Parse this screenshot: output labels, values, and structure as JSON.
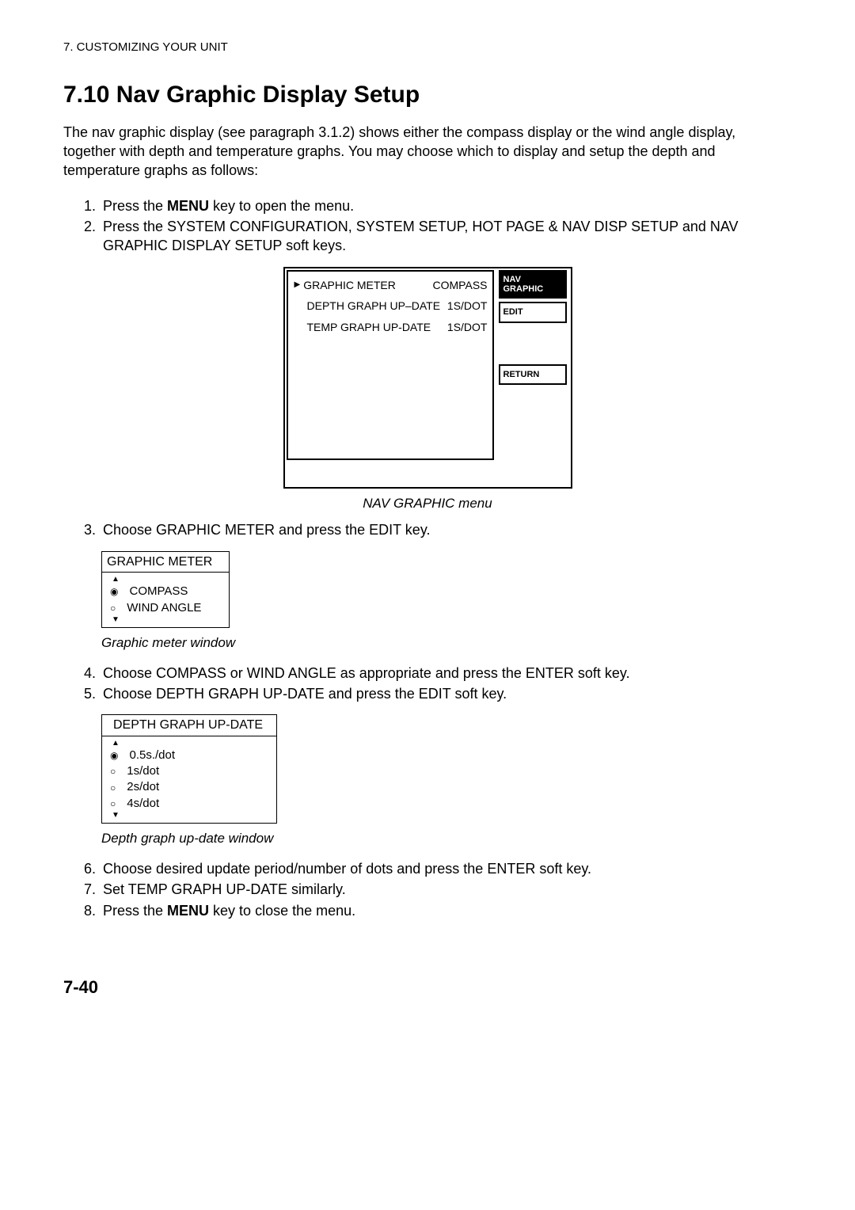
{
  "header": "7. CUSTOMIZING YOUR UNIT",
  "sectionTitle": "7.10  Nav Graphic Display Setup",
  "intro": "The nav graphic display (see paragraph 3.1.2) shows either the compass display or the wind angle display, together with depth and temperature graphs. You may choose which to display and setup the depth and temperature graphs as follows:",
  "steps1": {
    "s1_pre": "Press the ",
    "s1_bold": "MENU",
    "s1_post": " key to open the menu.",
    "s2": "Press the SYSTEM CONFIGURATION, SYSTEM SETUP, HOT PAGE & NAV DISP SETUP and NAV GRAPHIC DISPLAY SETUP soft keys."
  },
  "navGraphic": {
    "rows": [
      {
        "label": "GRAPHIC METER",
        "value": "COMPASS",
        "pointer": true,
        "indent": false
      },
      {
        "label": "DEPTH GRAPH UP–DATE",
        "value": "1S/DOT",
        "pointer": false,
        "indent": true
      },
      {
        "label": "TEMP GRAPH UP-DATE",
        "value": "1S/DOT",
        "pointer": false,
        "indent": true
      }
    ],
    "keyNavLine1": "NAV",
    "keyNavLine2": "GRAPHIC",
    "keyEdit": "EDIT",
    "keyReturn": "RETURN",
    "caption": "NAV GRAPHIC menu"
  },
  "step3": "Choose GRAPHIC METER and press the EDIT key.",
  "graphicMeter": {
    "title": "GRAPHIC METER",
    "optSelected": "COMPASS",
    "optOther": "WIND ANGLE",
    "caption": "Graphic meter window"
  },
  "steps45": {
    "s4": "Choose COMPASS or WIND ANGLE as appropriate and press the ENTER soft key.",
    "s5": "Choose DEPTH GRAPH UP-DATE and press the EDIT soft key."
  },
  "depthUpdate": {
    "title": "DEPTH GRAPH UP-DATE",
    "opts": [
      {
        "label": "0.5s./dot",
        "selected": true
      },
      {
        "label": "1s/dot",
        "selected": false
      },
      {
        "label": "2s/dot",
        "selected": false
      },
      {
        "label": "4s/dot",
        "selected": false
      }
    ],
    "caption": "Depth graph up-date window"
  },
  "steps678": {
    "s6": "Choose desired update period/number of dots and press the ENTER soft key.",
    "s7": "Set TEMP GRAPH UP-DATE similarly.",
    "s8_pre": "Press the ",
    "s8_bold": "MENU",
    "s8_post": " key to close the menu."
  },
  "pageNumber": "7-40"
}
